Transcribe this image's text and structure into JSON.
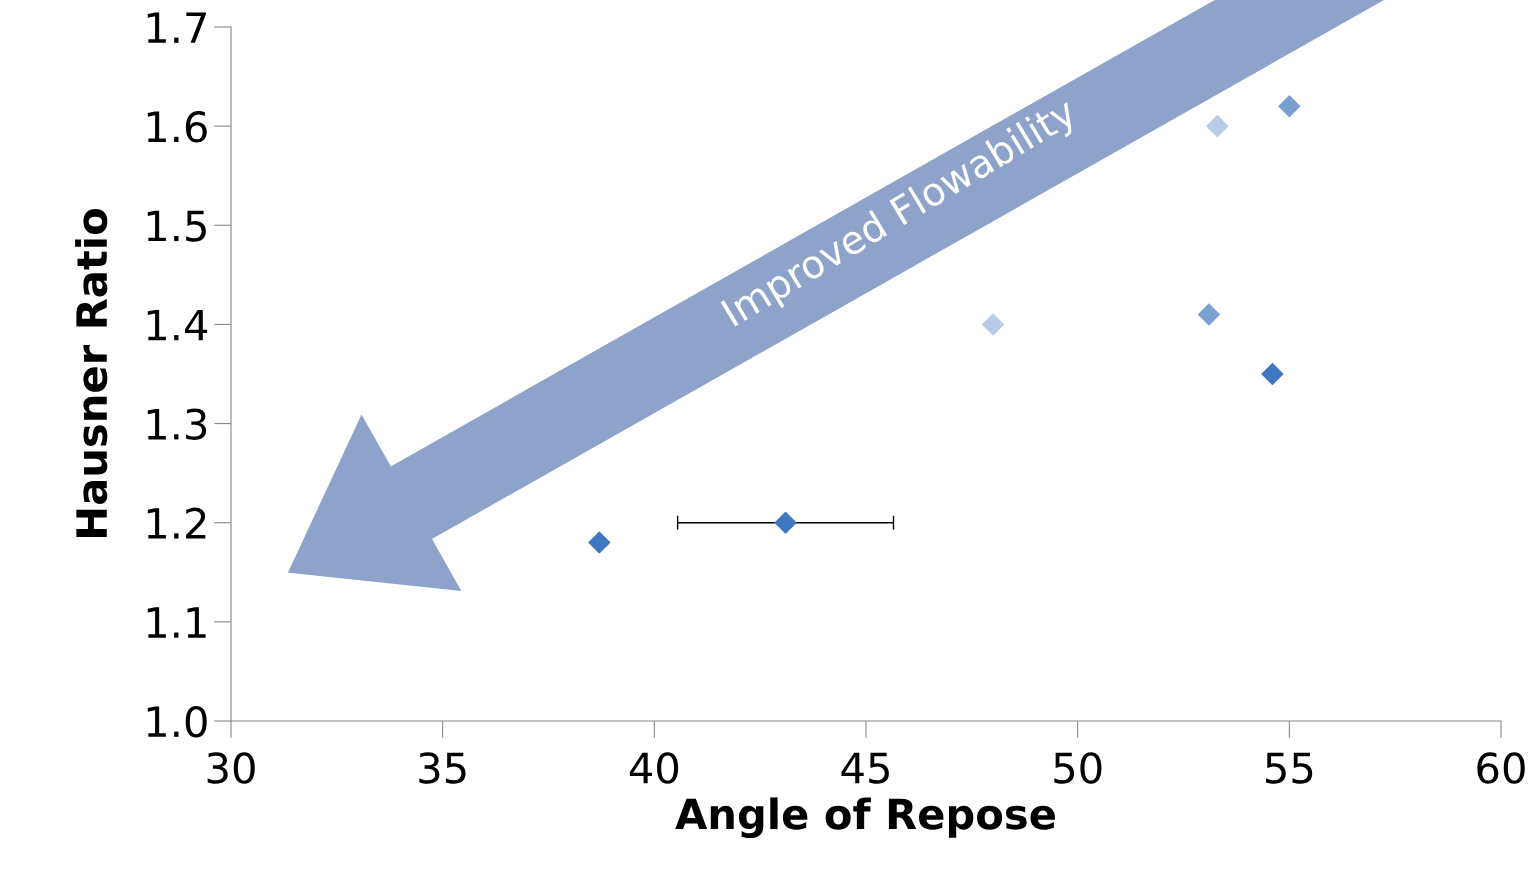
{
  "chart_data": {
    "type": "scatter",
    "xlabel": "Angle of Repose",
    "ylabel": "Hausner Ratio",
    "xlim": [
      30,
      60
    ],
    "xticks": [
      30,
      35,
      40,
      45,
      50,
      55,
      60
    ],
    "ylim": [
      1.0,
      1.7
    ],
    "yticks": [
      {
        "value": 1.0,
        "label": "1.0"
      },
      1.1,
      1.2,
      1.3,
      1.4,
      1.5,
      1.6,
      1.7
    ],
    "grid": false,
    "legend": false,
    "marker": "diamond",
    "series": [
      {
        "color": "#3f78c0",
        "x": [
          38.7,
          43.1,
          54.6
        ],
        "values": [
          1.18,
          1.2,
          1.35
        ],
        "xerrors": [
          null,
          2.55,
          null
        ]
      },
      {
        "color": "#7aa0d0",
        "x": [
          53.1,
          55.0
        ],
        "values": [
          1.41,
          1.62
        ]
      },
      {
        "color": "#b8cce8",
        "x": [
          48.0,
          53.3
        ],
        "values": [
          1.4,
          1.6
        ]
      }
    ],
    "annotations": [
      "Improved Flowability"
    ]
  }
}
